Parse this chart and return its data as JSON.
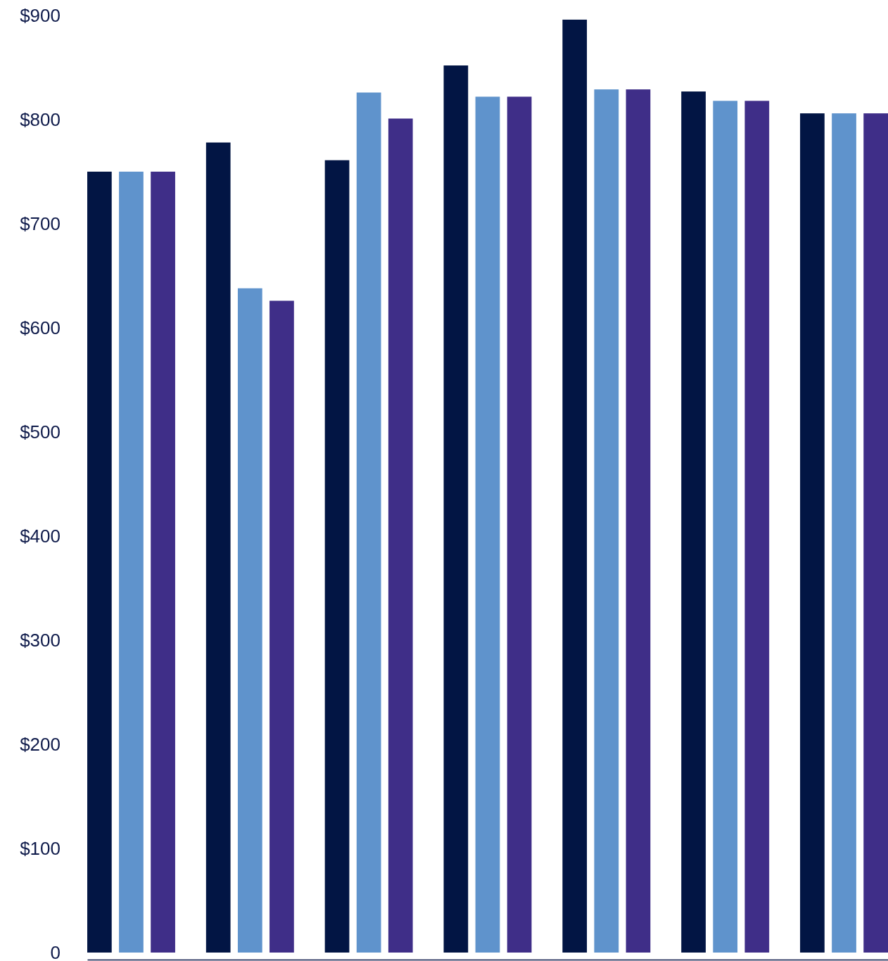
{
  "chart_data": {
    "type": "bar",
    "categories": [
      null,
      null,
      null,
      null,
      null,
      null,
      null
    ],
    "series": [
      {
        "color": "#021544",
        "values": [
          750,
          778,
          761,
          852,
          896,
          827,
          806
        ]
      },
      {
        "color": "#5f93cc",
        "values": [
          750,
          638,
          826,
          822,
          829,
          818,
          806
        ]
      },
      {
        "color": "#3f2e88",
        "values": [
          750,
          626,
          801,
          822,
          829,
          818,
          806
        ]
      }
    ],
    "ylim": [
      0,
      900
    ],
    "yticks": [
      {
        "value": 0,
        "label": "0"
      },
      {
        "value": 100,
        "label": "$100"
      },
      {
        "value": 200,
        "label": "$200"
      },
      {
        "value": 300,
        "label": "$300"
      },
      {
        "value": 400,
        "label": "$400"
      },
      {
        "value": 500,
        "label": "$500"
      },
      {
        "value": 600,
        "label": "$600"
      },
      {
        "value": 700,
        "label": "$700"
      },
      {
        "value": 800,
        "label": "$800"
      },
      {
        "value": 900,
        "label": "$900"
      }
    ],
    "grid": false
  }
}
